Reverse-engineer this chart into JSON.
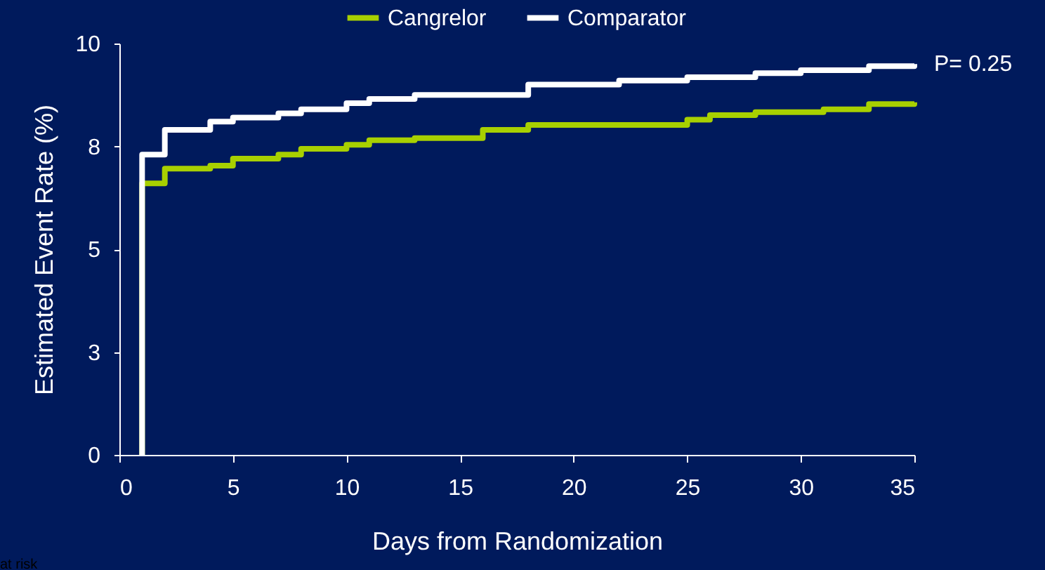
{
  "chart_data": {
    "type": "step",
    "xlabel": "Days from Randomization",
    "ylabel": "Estimated Event Rate (%)",
    "xlim": [
      0,
      35
    ],
    "xticks": [
      0,
      5,
      10,
      15,
      20,
      25,
      30,
      35
    ],
    "ylim": [
      0,
      10
    ],
    "yticks": [
      0,
      {
        "value": 2.5,
        "label": "3"
      },
      5,
      {
        "value": 7.5,
        "label": "8"
      },
      10
    ],
    "grid": false,
    "legend": "top",
    "marker": "none",
    "line_style": "solid",
    "series": [
      {
        "name": "Cangrelor",
        "color": "#a8d000",
        "x": [
          1,
          1,
          2,
          4,
          5,
          7,
          8,
          10,
          11,
          13,
          16,
          18,
          25,
          26,
          28,
          31,
          33,
          35
        ],
        "values": [
          0,
          6.6,
          6.96,
          7.03,
          7.2,
          7.3,
          7.44,
          7.54,
          7.65,
          7.7,
          7.9,
          8.02,
          8.15,
          8.26,
          8.33,
          8.4,
          8.53,
          8.57
        ]
      },
      {
        "name": "Comparator",
        "color": "#ffffff",
        "x": [
          1,
          1,
          2,
          4,
          5,
          7,
          8,
          10,
          11,
          13,
          18,
          22,
          25,
          28,
          30,
          33,
          35
        ],
        "values": [
          0,
          7.3,
          7.9,
          8.1,
          8.2,
          8.3,
          8.4,
          8.55,
          8.65,
          8.75,
          9.0,
          9.1,
          9.18,
          9.28,
          9.35,
          9.45,
          9.5
        ]
      }
    ],
    "annotations": [
      {
        "text": "P= 0.25",
        "x": 35,
        "y": 9.5
      },
      "at risk"
    ]
  }
}
